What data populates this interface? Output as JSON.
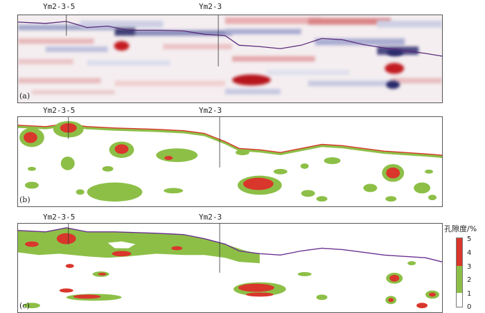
{
  "wells": [
    "Ym2-3-5",
    "Ym2-3"
  ],
  "panels": {
    "a": "(a)",
    "b": "(b)",
    "c": "(c)"
  },
  "legend": {
    "title": "孔隙度/%",
    "ticks": [
      "5",
      "4",
      "3",
      "2",
      "1",
      "0"
    ],
    "colors": {
      "high": "#d9372c",
      "mid": "#8dbf47",
      "low": "#ffffff"
    }
  },
  "seismic_colors": {
    "positive": "#c0282d",
    "negative": "#2c2a6b",
    "horizon": "#6a2f8f"
  }
}
